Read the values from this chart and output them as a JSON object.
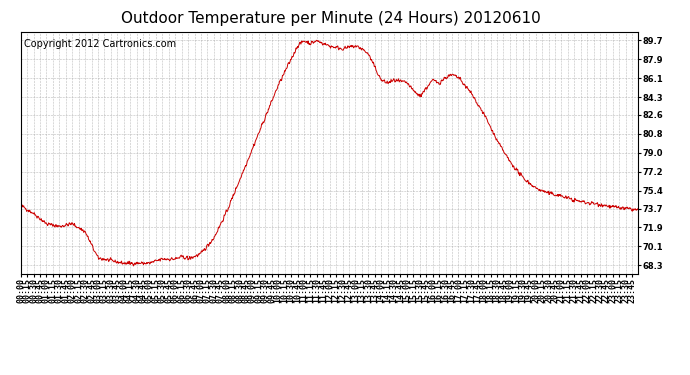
{
  "title": "Outdoor Temperature per Minute (24 Hours) 20120610",
  "copyright_text": "Copyright 2012 Cartronics.com",
  "line_color": "#cc0000",
  "background_color": "#ffffff",
  "plot_background": "#ffffff",
  "grid_color": "#aaaaaa",
  "yticks": [
    68.3,
    70.1,
    71.9,
    73.7,
    75.4,
    77.2,
    79.0,
    80.8,
    82.6,
    84.3,
    86.1,
    87.9,
    89.7
  ],
  "ylim": [
    67.5,
    90.5
  ],
  "total_minutes": 1440,
  "title_fontsize": 11,
  "axis_fontsize": 6,
  "copyright_fontsize": 7,
  "figwidth": 6.9,
  "figheight": 3.75,
  "dpi": 100
}
